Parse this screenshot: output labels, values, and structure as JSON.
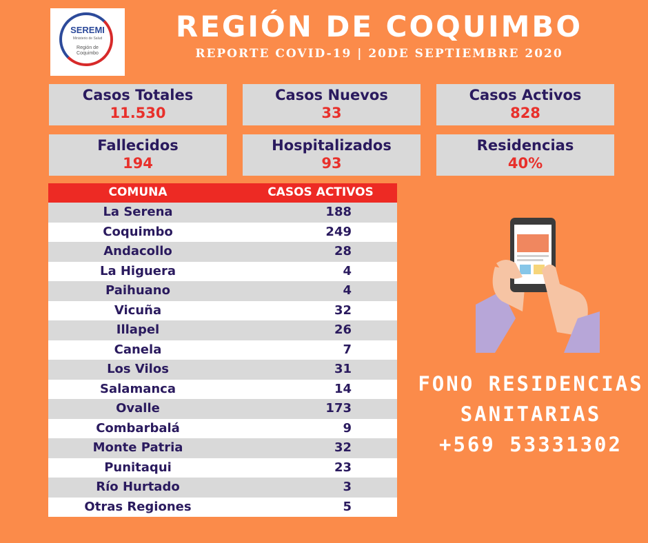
{
  "logo": {
    "name": "SEREMI",
    "ministry": "Ministerio de Salud",
    "region_line1": "Región de",
    "region_line2": "Coquimbo"
  },
  "header": {
    "title": "REGIÓN DE COQUIMBO",
    "subtitle": "REPORTE COVID-19 | 20DE SEPTIEMBRE 2020"
  },
  "stats": [
    {
      "label": "Casos Totales",
      "value": "11.530"
    },
    {
      "label": "Casos Nuevos",
      "value": "33"
    },
    {
      "label": "Casos Activos",
      "value": "828"
    },
    {
      "label": "Fallecidos",
      "value": "194"
    },
    {
      "label": "Hospitalizados",
      "value": "93"
    },
    {
      "label": "Residencias",
      "value": "40%"
    }
  ],
  "table": {
    "headers": [
      "COMUNA",
      "CASOS ACTIVOS"
    ],
    "rows": [
      {
        "comuna": "La Serena",
        "casos": "188"
      },
      {
        "comuna": "Coquimbo",
        "casos": "249"
      },
      {
        "comuna": "Andacollo",
        "casos": "28"
      },
      {
        "comuna": "La Higuera",
        "casos": "4"
      },
      {
        "comuna": "Paihuano",
        "casos": "4"
      },
      {
        "comuna": "Vicuña",
        "casos": "32"
      },
      {
        "comuna": "Illapel",
        "casos": "26"
      },
      {
        "comuna": "Canela",
        "casos": "7"
      },
      {
        "comuna": "Los Vilos",
        "casos": "31"
      },
      {
        "comuna": "Salamanca",
        "casos": "14"
      },
      {
        "comuna": "Ovalle",
        "casos": "173"
      },
      {
        "comuna": "Combarbalá",
        "casos": "9"
      },
      {
        "comuna": "Monte Patria",
        "casos": "32"
      },
      {
        "comuna": "Punitaqui",
        "casos": "23"
      },
      {
        "comuna": "Río Hurtado",
        "casos": "3"
      },
      {
        "comuna": "Otras Regiones",
        "casos": "5"
      }
    ]
  },
  "phone_illustration": {
    "icon": "phone-in-hands-icon"
  },
  "contact": {
    "line1": "FONO RESIDENCIAS",
    "line2": "SANITARIAS",
    "line3": "+569 53331302"
  }
}
